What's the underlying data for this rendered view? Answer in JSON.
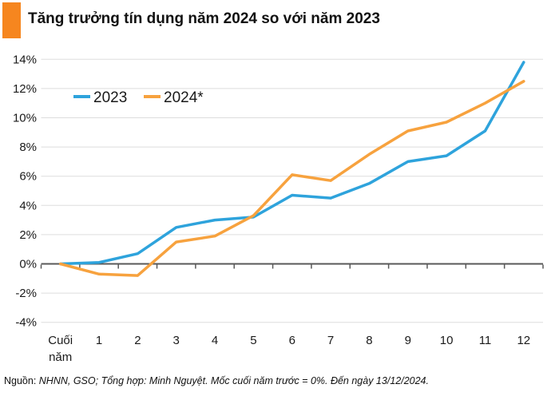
{
  "header": {
    "title": "Tăng trưởng tín dụng năm 2024 so với năm 2023",
    "accent_color": "#F6861F"
  },
  "footer": {
    "prefix": "Nguồn: ",
    "text": "NHNN, GSO; Tổng hợp: Minh Nguyệt. Mốc cuối năm trước = 0%. Đến ngày 13/12/2024."
  },
  "chart_data": {
    "type": "line",
    "title": "Tăng trưởng tín dụng năm 2024 so với năm 2023",
    "categories": [
      "Cuối năm",
      "1",
      "2",
      "3",
      "4",
      "5",
      "6",
      "7",
      "8",
      "9",
      "10",
      "11",
      "12"
    ],
    "series": [
      {
        "name": "2023",
        "color": "#2EA3DC",
        "values": [
          0,
          0.1,
          0.7,
          2.5,
          3.0,
          3.2,
          4.7,
          4.5,
          5.5,
          7.0,
          7.4,
          9.1,
          13.8
        ]
      },
      {
        "name": "2024*",
        "color": "#F7A23E",
        "values": [
          0,
          -0.7,
          -0.8,
          1.5,
          1.9,
          3.3,
          6.1,
          5.7,
          7.5,
          9.1,
          9.7,
          11.0,
          12.5
        ]
      }
    ],
    "xlabel": "",
    "ylabel": "",
    "ylim": [
      -4,
      14
    ],
    "ytick_values": [
      14,
      12,
      10,
      8,
      6,
      4,
      2,
      0,
      -2,
      -4
    ],
    "ytick_labels": [
      "14%",
      "12%",
      "10%",
      "8%",
      "6%",
      "4%",
      "2%",
      "0%",
      "-2%",
      "-4%"
    ],
    "grid": true,
    "gridline_color": "#DDDDDD",
    "axis_color": "#595959",
    "legend_position": "top-left",
    "baseline_note": "0% = cuối năm trước"
  }
}
